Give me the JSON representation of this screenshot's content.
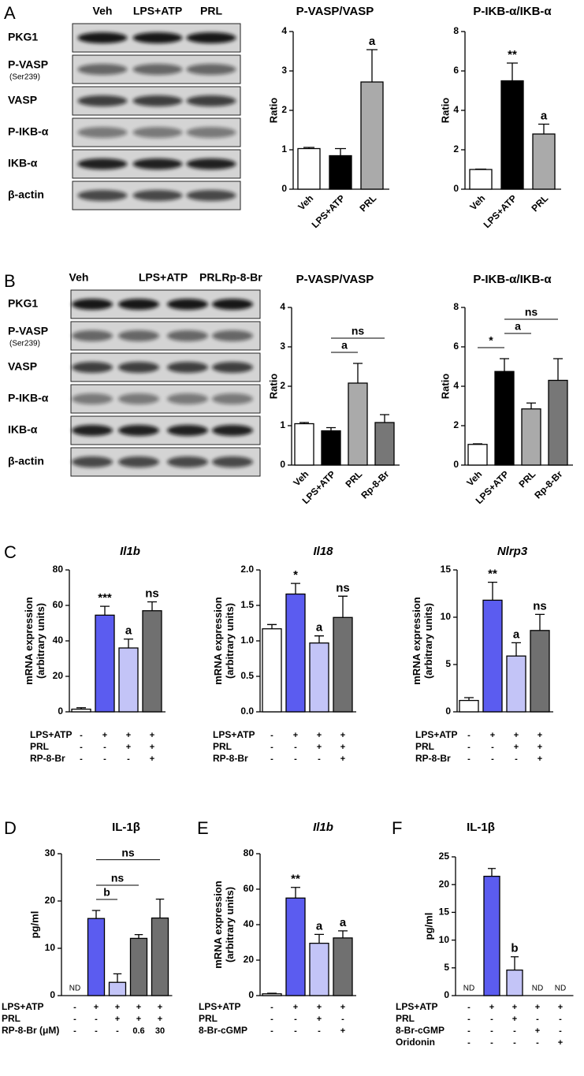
{
  "panel_labels": [
    "A",
    "B",
    "C",
    "D",
    "E",
    "F"
  ],
  "blots": [
    {
      "lanes": [
        "Veh",
        "LPS+ATP",
        "PRL"
      ],
      "rows": [
        {
          "label": "PKG1"
        },
        {
          "label": "P-VASP",
          "sublabel": "(Ser239)"
        },
        {
          "label": "VASP"
        },
        {
          "label": "P-IKB-α"
        },
        {
          "label": "IKB-α"
        },
        {
          "label": "β-actin"
        }
      ]
    },
    {
      "lanes": [
        "Veh",
        "LPS+ATP",
        "PRL",
        "Rp-8-Br"
      ],
      "rows": [
        {
          "label": "PKG1"
        },
        {
          "label": "P-VASP",
          "sublabel": "(Ser239)"
        },
        {
          "label": "VASP"
        },
        {
          "label": "P-IKB-α"
        },
        {
          "label": "IKB-α"
        },
        {
          "label": "β-actin"
        }
      ]
    }
  ],
  "chart_data": [
    {
      "type": "bar",
      "title": "P-VASP/VASP",
      "ylabel": "Ratio",
      "categories": [
        "Veh",
        "LPS+ATP",
        "PRL"
      ],
      "values": [
        1.03,
        0.85,
        2.72
      ],
      "errors": [
        0.03,
        0.18,
        0.82
      ],
      "colors": [
        "#ffffff",
        "#000000",
        "#aaaaaa"
      ],
      "significance": [
        null,
        null,
        "a"
      ],
      "ylim": [
        0,
        4
      ],
      "yticks": [
        0,
        1,
        2,
        3,
        4
      ]
    },
    {
      "type": "bar",
      "title": "P-IKB-α/IKB-α",
      "ylabel": "Ratio",
      "categories": [
        "Veh",
        "LPS+ATP",
        "PRL"
      ],
      "values": [
        1.0,
        5.5,
        2.8
      ],
      "errors": [
        0.02,
        0.9,
        0.5
      ],
      "colors": [
        "#ffffff",
        "#000000",
        "#aaaaaa"
      ],
      "significance": [
        null,
        "**",
        "a"
      ],
      "ylim": [
        0,
        8
      ],
      "yticks": [
        0,
        2,
        4,
        6,
        8
      ]
    },
    {
      "type": "bar",
      "title": "P-VASP/VASP",
      "ylabel": "Ratio",
      "categories": [
        "Veh",
        "LPS+ATP",
        "PRL",
        "Rp-8-Br"
      ],
      "values": [
        1.05,
        0.87,
        2.08,
        1.08
      ],
      "errors": [
        0.03,
        0.08,
        0.5,
        0.2
      ],
      "colors": [
        "#ffffff",
        "#000000",
        "#aaaaaa",
        "#777777"
      ],
      "brackets": [
        {
          "from": 1,
          "to": 2,
          "text": "a"
        },
        {
          "from": 1,
          "to": 3,
          "text": "ns"
        }
      ],
      "ylim": [
        0,
        4
      ],
      "yticks": [
        0,
        1,
        2,
        3,
        4
      ]
    },
    {
      "type": "bar",
      "title": "P-IKB-α/IKB-α",
      "ylabel": "Ratio",
      "categories": [
        "Veh",
        "LPS+ATP",
        "PRL",
        "Rp-8-Br"
      ],
      "values": [
        1.05,
        4.75,
        2.85,
        4.3
      ],
      "errors": [
        0.03,
        0.65,
        0.3,
        1.1
      ],
      "colors": [
        "#ffffff",
        "#000000",
        "#aaaaaa",
        "#777777"
      ],
      "brackets": [
        {
          "from": 0,
          "to": 1,
          "text": "*"
        },
        {
          "from": 1,
          "to": 2,
          "text": "a"
        },
        {
          "from": 1,
          "to": 3,
          "text": "ns"
        }
      ],
      "ylim": [
        0,
        8
      ],
      "yticks": [
        0,
        2,
        4,
        6,
        8
      ]
    },
    {
      "type": "bar",
      "title": "Il1b",
      "title_italic": true,
      "ylabel": [
        "mRNA expression",
        "(arbitrary units)"
      ],
      "categories": [
        null,
        null,
        null,
        null
      ],
      "values": [
        1.5,
        54.5,
        36,
        57
      ],
      "errors": [
        0.8,
        5,
        5,
        5
      ],
      "colors": [
        "#ffffff",
        "#5b5cf0",
        "#c3c4f7",
        "#707070"
      ],
      "significance": [
        null,
        "***",
        "a",
        "ns"
      ],
      "ylim": [
        0,
        80
      ],
      "yticks": [
        0,
        20,
        40,
        60,
        80
      ],
      "conditions": [
        {
          "label": "LPS+ATP",
          "signs": [
            "-",
            "+",
            "+",
            "+"
          ]
        },
        {
          "label": "PRL",
          "signs": [
            "-",
            "-",
            "+",
            "+"
          ]
        },
        {
          "label": "RP-8-Br",
          "signs": [
            "-",
            "-",
            "-",
            "+"
          ]
        }
      ]
    },
    {
      "type": "bar",
      "title": "Il18",
      "title_italic": true,
      "ylabel": [
        "mRNA expression",
        "(arbitrary units)"
      ],
      "categories": [
        null,
        null,
        null,
        null
      ],
      "values": [
        1.17,
        1.66,
        0.97,
        1.33
      ],
      "errors": [
        0.06,
        0.15,
        0.1,
        0.3
      ],
      "colors": [
        "#ffffff",
        "#5b5cf0",
        "#c3c4f7",
        "#707070"
      ],
      "significance": [
        null,
        "*",
        "a",
        "ns"
      ],
      "ylim": [
        0,
        2
      ],
      "yticks": [
        {
          "value": 0,
          "label": "0.0"
        },
        0.5,
        {
          "value": 1,
          "label": "1.0"
        },
        1.5,
        {
          "value": 2,
          "label": "2.0"
        }
      ],
      "conditions": [
        {
          "label": "LPS+ATP",
          "signs": [
            "-",
            "+",
            "+",
            "+"
          ]
        },
        {
          "label": "PRL",
          "signs": [
            "-",
            "-",
            "+",
            "+"
          ]
        },
        {
          "label": "RP-8-Br",
          "signs": [
            "-",
            "-",
            "-",
            "+"
          ]
        }
      ]
    },
    {
      "type": "bar",
      "title": "Nlrp3",
      "title_italic": true,
      "ylabel": [
        "mRNA expression",
        "(arbitrary units)"
      ],
      "categories": [
        null,
        null,
        null,
        null
      ],
      "values": [
        1.2,
        11.8,
        5.9,
        8.6
      ],
      "errors": [
        0.3,
        1.9,
        1.4,
        1.7
      ],
      "colors": [
        "#ffffff",
        "#5b5cf0",
        "#c3c4f7",
        "#707070"
      ],
      "significance": [
        null,
        "**",
        "a",
        "ns"
      ],
      "ylim": [
        0,
        15
      ],
      "yticks": [
        0,
        5,
        10,
        15
      ],
      "conditions": [
        {
          "label": "LPS+ATP",
          "signs": [
            "-",
            "+",
            "+",
            "+"
          ]
        },
        {
          "label": "PRL",
          "signs": [
            "-",
            "-",
            "+",
            "+"
          ]
        },
        {
          "label": "RP-8-Br",
          "signs": [
            "-",
            "-",
            "-",
            "+"
          ]
        }
      ]
    },
    {
      "type": "bar",
      "title": "IL-1β",
      "ylabel": "pg/ml",
      "categories": [
        null,
        null,
        null,
        null,
        null
      ],
      "values": [
        null,
        16.3,
        2.8,
        12.1,
        16.4
      ],
      "errors": [
        null,
        1.7,
        1.8,
        0.8,
        4
      ],
      "value_labels": [
        "ND",
        null,
        null,
        null,
        null
      ],
      "colors": [
        null,
        "#5b5cf0",
        "#c3c4f7",
        "#707070",
        "#707070"
      ],
      "brackets": [
        {
          "from": 1,
          "to": 2,
          "text": "b"
        },
        {
          "from": 1,
          "to": 3,
          "text": "ns"
        },
        {
          "from": 1,
          "to": 4,
          "text": "ns"
        }
      ],
      "ylim": [
        0,
        30
      ],
      "yticks": [
        0,
        10,
        20,
        30
      ],
      "conditions": [
        {
          "label": "LPS+ATP",
          "signs": [
            "-",
            "+",
            "+",
            "+",
            "+"
          ]
        },
        {
          "label": "PRL",
          "signs": [
            "-",
            "-",
            "+",
            "+",
            "+"
          ]
        },
        {
          "label": "RP-8-Br (μM)",
          "signs": [
            "-",
            "-",
            "-",
            "0.6",
            "30"
          ]
        }
      ]
    },
    {
      "type": "bar",
      "title": "Il1b",
      "title_italic": true,
      "ylabel": [
        "mRNA expression",
        "(arbitrary units)"
      ],
      "categories": [
        null,
        null,
        null,
        null
      ],
      "values": [
        1.0,
        55,
        29.5,
        32.5
      ],
      "errors": [
        0.3,
        6,
        5,
        4
      ],
      "colors": [
        "#ffffff",
        "#5b5cf0",
        "#c3c4f7",
        "#707070"
      ],
      "significance": [
        null,
        "**",
        "a",
        "a"
      ],
      "ylim": [
        0,
        80
      ],
      "yticks": [
        0,
        20,
        40,
        60,
        80
      ],
      "conditions": [
        {
          "label": "LPS+ATP",
          "signs": [
            "-",
            "+",
            "+",
            "+"
          ]
        },
        {
          "label": "PRL",
          "signs": [
            "-",
            "-",
            "+",
            "-"
          ]
        },
        {
          "label": "8-Br-cGMP",
          "signs": [
            "-",
            "-",
            "-",
            "+"
          ]
        }
      ]
    },
    {
      "type": "bar",
      "title": "IL-1β",
      "ylabel": "pg/ml",
      "categories": [
        null,
        null,
        null,
        null,
        null
      ],
      "values": [
        null,
        21.5,
        4.6,
        null,
        null
      ],
      "errors": [
        null,
        1.4,
        2.4,
        null,
        null
      ],
      "value_labels": [
        "ND",
        null,
        null,
        "ND",
        "ND"
      ],
      "colors": [
        null,
        "#5b5cf0",
        "#c3c4f7",
        null,
        null
      ],
      "significance": [
        null,
        null,
        "b",
        null,
        null
      ],
      "ylim": [
        0,
        25
      ],
      "yticks": [
        0,
        5,
        10,
        15,
        20,
        25
      ],
      "conditions": [
        {
          "label": "LPS+ATP",
          "signs": [
            "-",
            "+",
            "+",
            "+",
            "+"
          ]
        },
        {
          "label": "PRL",
          "signs": [
            "-",
            "-",
            "+",
            "-",
            "-"
          ]
        },
        {
          "label": "8-Br-cGMP",
          "signs": [
            "-",
            "-",
            "-",
            "+",
            "-"
          ]
        },
        {
          "label": "Oridonin",
          "signs": [
            "-",
            "-",
            "-",
            "-",
            "+"
          ]
        }
      ]
    }
  ]
}
